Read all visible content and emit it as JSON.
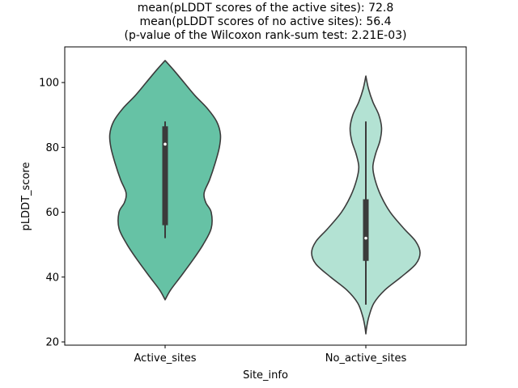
{
  "chart_data": {
    "type": "violin",
    "title_lines": [
      "mean(pLDDT scores of the active sites): 72.8",
      "mean(pLDDT scores of no active sites): 56.4",
      "(p-value of the Wilcoxon rank-sum test: 2.21E-03)"
    ],
    "xlabel": "Site_info",
    "ylabel": "pLDDT_score",
    "ylim": [
      19,
      111
    ],
    "yticks": [
      20,
      40,
      60,
      80,
      100
    ],
    "categories": [
      "Active_sites",
      "No_active_sites"
    ],
    "series": [
      {
        "color": "#66c2a5",
        "box": {
          "q1": 56,
          "median": 81,
          "q3": 86.5,
          "whisker_low": 52,
          "whisker_high": 88
        },
        "density": [
          [
            33,
            0.0
          ],
          [
            36,
            0.1
          ],
          [
            40,
            0.28
          ],
          [
            45,
            0.5
          ],
          [
            50,
            0.7
          ],
          [
            55,
            0.85
          ],
          [
            60,
            0.85
          ],
          [
            63,
            0.75
          ],
          [
            66,
            0.72
          ],
          [
            70,
            0.82
          ],
          [
            75,
            0.92
          ],
          [
            80,
            1.0
          ],
          [
            84,
            1.02
          ],
          [
            88,
            0.95
          ],
          [
            92,
            0.78
          ],
          [
            96,
            0.55
          ],
          [
            100,
            0.35
          ],
          [
            104,
            0.15
          ],
          [
            106.8,
            0.0
          ]
        ]
      },
      {
        "color": "#b3e2d3",
        "box": {
          "q1": 45,
          "median": 52,
          "q3": 64,
          "whisker_low": 31.5,
          "whisker_high": 88
        },
        "density": [
          [
            22.5,
            0.0
          ],
          [
            25,
            0.02
          ],
          [
            28,
            0.06
          ],
          [
            32,
            0.15
          ],
          [
            36,
            0.35
          ],
          [
            40,
            0.65
          ],
          [
            44,
            0.92
          ],
          [
            47.5,
            1.0
          ],
          [
            51,
            0.92
          ],
          [
            55,
            0.7
          ],
          [
            60,
            0.45
          ],
          [
            65,
            0.28
          ],
          [
            70,
            0.17
          ],
          [
            74,
            0.13
          ],
          [
            78,
            0.18
          ],
          [
            82,
            0.26
          ],
          [
            86,
            0.29
          ],
          [
            90,
            0.24
          ],
          [
            94,
            0.13
          ],
          [
            98,
            0.05
          ],
          [
            102,
            0.0
          ]
        ]
      }
    ]
  }
}
